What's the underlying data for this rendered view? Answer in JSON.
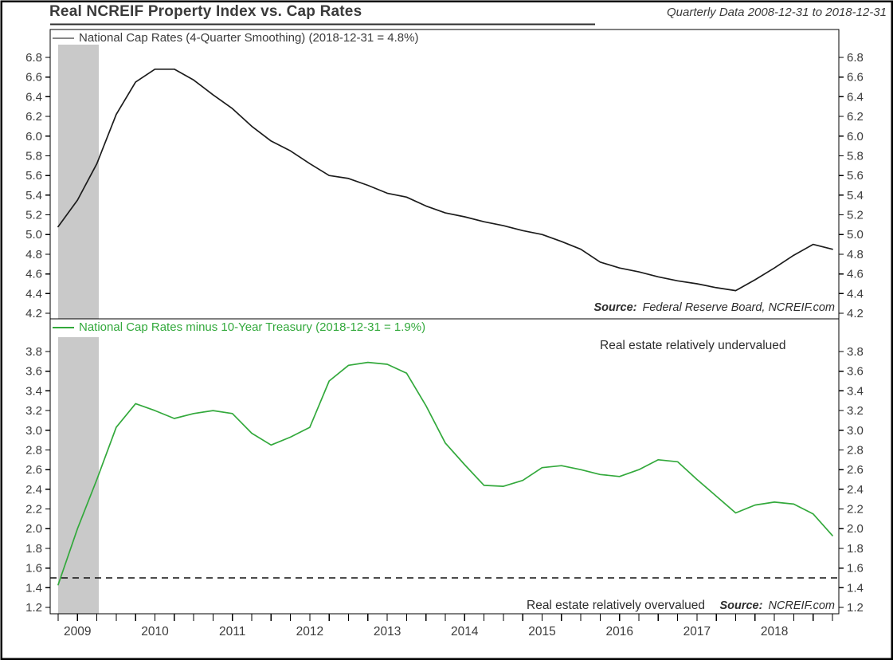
{
  "header": {
    "title": "Real NCREIF Property Index vs. Cap Rates",
    "subtitle": "Quarterly Data 2008-12-31 to 2018-12-31"
  },
  "panels": {
    "top": {
      "legend_label": "National Cap Rates (4-Quarter Smoothing) (2018-12-31 = 4.8%)",
      "source_label": "Source:",
      "source_text": "Federal Reserve Board, NCREIF.com"
    },
    "bottom": {
      "legend_label": "National Cap Rates minus 10-Year Treasury (2018-12-31 = 1.9%)",
      "source_label": "Source:",
      "source_text": "NCREIF.com",
      "annotation_top": "Real estate relatively undervalued",
      "annotation_bottom": "Real estate relatively overvalued"
    }
  },
  "colors": {
    "cap_rate_line": "#1c1c1c",
    "cap_rate_legend_swatch": "#888888",
    "spread_line": "#33a93c",
    "recession_band": "#c9c9c9",
    "axis_text": "#3b3b3b",
    "border": "#000000"
  },
  "chart_data": [
    {
      "type": "line",
      "panel": "top",
      "title": "National Cap Rates (4-Quarter Smoothing)",
      "last_value_label": "2018-12-31 = 4.8%",
      "x": [
        "2008-12-31",
        "2009-03-31",
        "2009-06-30",
        "2009-09-30",
        "2009-12-31",
        "2010-03-31",
        "2010-06-30",
        "2010-09-30",
        "2010-12-31",
        "2011-03-31",
        "2011-06-30",
        "2011-09-30",
        "2011-12-31",
        "2012-03-31",
        "2012-06-30",
        "2012-09-30",
        "2012-12-31",
        "2013-03-31",
        "2013-06-30",
        "2013-09-30",
        "2013-12-31",
        "2014-03-31",
        "2014-06-30",
        "2014-09-30",
        "2014-12-31",
        "2015-03-31",
        "2015-06-30",
        "2015-09-30",
        "2015-12-31",
        "2016-03-31",
        "2016-06-30",
        "2016-09-30",
        "2016-12-31",
        "2017-03-31",
        "2017-06-30",
        "2017-09-30",
        "2017-12-31",
        "2018-03-31",
        "2018-06-30",
        "2018-09-30",
        "2018-12-31"
      ],
      "values": [
        5.08,
        5.35,
        5.72,
        6.22,
        6.55,
        6.68,
        6.68,
        6.57,
        6.42,
        6.28,
        6.1,
        5.95,
        5.85,
        5.72,
        5.6,
        5.57,
        5.5,
        5.42,
        5.38,
        5.29,
        5.22,
        5.18,
        5.13,
        5.09,
        5.04,
        5.0,
        4.93,
        4.85,
        4.72,
        4.66,
        4.62,
        4.57,
        4.53,
        4.5,
        4.46,
        4.43,
        4.54,
        4.66,
        4.79,
        4.9,
        4.85
      ],
      "ylim": [
        4.14,
        7.08
      ],
      "yticks": [
        4.2,
        4.4,
        4.6,
        4.8,
        5.0,
        5.2,
        5.4,
        5.6,
        5.8,
        6.0,
        6.2,
        6.4,
        6.6,
        6.8
      ],
      "xtick_years": [
        "2009",
        "2010",
        "2011",
        "2012",
        "2013",
        "2014",
        "2015",
        "2016",
        "2017",
        "2018"
      ],
      "recession_band_x": [
        "2008-12-31",
        "2009-06-30"
      ],
      "grid": false,
      "legend_position": "top-left"
    },
    {
      "type": "line",
      "panel": "bottom",
      "title": "National Cap Rates minus 10-Year Treasury",
      "last_value_label": "2018-12-31 = 1.9%",
      "x": [
        "2008-12-31",
        "2009-03-31",
        "2009-06-30",
        "2009-09-30",
        "2009-12-31",
        "2010-03-31",
        "2010-06-30",
        "2010-09-30",
        "2010-12-31",
        "2011-03-31",
        "2011-06-30",
        "2011-09-30",
        "2011-12-31",
        "2012-03-31",
        "2012-06-30",
        "2012-09-30",
        "2012-12-31",
        "2013-03-31",
        "2013-06-30",
        "2013-09-30",
        "2013-12-31",
        "2014-03-31",
        "2014-06-30",
        "2014-09-30",
        "2014-12-31",
        "2015-03-31",
        "2015-06-30",
        "2015-09-30",
        "2015-12-31",
        "2016-03-31",
        "2016-06-30",
        "2016-09-30",
        "2016-12-31",
        "2017-03-31",
        "2017-06-30",
        "2017-09-30",
        "2017-12-31",
        "2018-03-31",
        "2018-06-30",
        "2018-09-30",
        "2018-12-31"
      ],
      "values": [
        1.43,
        2.0,
        2.5,
        3.03,
        3.27,
        3.2,
        3.12,
        3.17,
        3.2,
        3.17,
        2.97,
        2.85,
        2.93,
        3.03,
        3.5,
        3.66,
        3.69,
        3.67,
        3.58,
        3.25,
        2.87,
        2.65,
        2.44,
        2.43,
        2.49,
        2.62,
        2.64,
        2.6,
        2.55,
        2.53,
        2.6,
        2.7,
        2.68,
        2.5,
        2.33,
        2.16,
        2.24,
        2.27,
        2.25,
        2.15,
        1.93
      ],
      "ylim": [
        1.13,
        4.13
      ],
      "yticks": [
        1.2,
        1.4,
        1.6,
        1.8,
        2.0,
        2.2,
        2.4,
        2.6,
        2.8,
        3.0,
        3.2,
        3.4,
        3.6,
        3.8
      ],
      "reference_line": 1.5,
      "xtick_years": [
        "2009",
        "2010",
        "2011",
        "2012",
        "2013",
        "2014",
        "2015",
        "2016",
        "2017",
        "2018"
      ],
      "recession_band_x": [
        "2008-12-31",
        "2009-06-30"
      ],
      "grid": false,
      "legend_position": "top-left"
    }
  ]
}
